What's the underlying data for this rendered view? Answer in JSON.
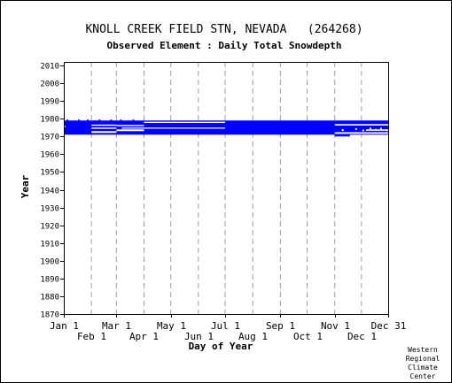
{
  "chart_data": {
    "type": "heatmap",
    "title": "KNOLL CREEK FIELD STN, NEVADA   (264268)",
    "subtitle": "Observed Element : Daily Total Snowdepth",
    "xlabel": "Day of Year",
    "ylabel": "Year",
    "x_ticks_upper": [
      {
        "label": "Jan 1",
        "day": 1
      },
      {
        "label": "Mar 1",
        "day": 60
      },
      {
        "label": "May 1",
        "day": 121
      },
      {
        "label": "Jul 1",
        "day": 182
      },
      {
        "label": "Sep 1",
        "day": 244
      },
      {
        "label": "Nov 1",
        "day": 305
      },
      {
        "label": "Dec 31",
        "day": 365
      }
    ],
    "x_ticks_lower": [
      {
        "label": "Feb 1",
        "day": 32
      },
      {
        "label": "Apr 1",
        "day": 91
      },
      {
        "label": "Jun 1",
        "day": 152
      },
      {
        "label": "Aug 1",
        "day": 213
      },
      {
        "label": "Oct 1",
        "day": 274
      },
      {
        "label": "Dec 1",
        "day": 335
      }
    ],
    "gridline_days": [
      32,
      60,
      91,
      121,
      152,
      182,
      213,
      244,
      274,
      305,
      335
    ],
    "xlim": [
      1,
      365
    ],
    "ylim": [
      1870,
      2012
    ],
    "y_ticks": [
      1870,
      1880,
      1890,
      1900,
      1910,
      1920,
      1930,
      1940,
      1950,
      1960,
      1970,
      1980,
      1990,
      2000,
      2010
    ],
    "grid": true,
    "data_color": "#0000ff",
    "coverage_segments": [
      {
        "day_start": 1,
        "day_end": 365,
        "year_start": 1971,
        "year_end": 1979
      },
      {
        "day_start": 305,
        "day_end": 322,
        "year_start": 1970,
        "year_end": 1971
      }
    ],
    "missing_segments": [
      {
        "day_start": 32,
        "day_end": 60,
        "year_start": 1972,
        "year_end": 1973
      },
      {
        "day_start": 32,
        "day_end": 60,
        "year_start": 1974.3,
        "year_end": 1975
      },
      {
        "day_start": 32,
        "day_end": 60,
        "year_start": 1976,
        "year_end": 1976.7
      },
      {
        "day_start": 60,
        "day_end": 91,
        "year_start": 1973,
        "year_end": 1974
      },
      {
        "day_start": 60,
        "day_end": 91,
        "year_start": 1975.8,
        "year_end": 1976.5
      },
      {
        "day_start": 91,
        "day_end": 182,
        "year_start": 1977.6,
        "year_end": 1978.3
      },
      {
        "day_start": 66,
        "day_end": 182,
        "year_start": 1974.4,
        "year_end": 1975
      },
      {
        "day_start": 1,
        "day_end": 3,
        "year_start": 1975.2,
        "year_end": 1976
      },
      {
        "day_start": 305,
        "day_end": 365,
        "year_start": 1971.5,
        "year_end": 1972.4
      },
      {
        "day_start": 305,
        "day_end": 365,
        "year_start": 1976.2,
        "year_end": 1977
      },
      {
        "day_start": 340,
        "day_end": 365,
        "year_start": 1973.2,
        "year_end": 1974
      }
    ],
    "upper_edge_points": [
      {
        "day": 4,
        "year": 1979
      },
      {
        "day": 12,
        "year": 1978.5
      },
      {
        "day": 17,
        "year": 1979
      },
      {
        "day": 22,
        "year": 1978.4
      },
      {
        "day": 27,
        "year": 1979
      },
      {
        "day": 35,
        "year": 1978.5
      },
      {
        "day": 40,
        "year": 1979
      },
      {
        "day": 46,
        "year": 1978.4
      },
      {
        "day": 53,
        "year": 1979
      },
      {
        "day": 58,
        "year": 1978.4
      },
      {
        "day": 64,
        "year": 1979
      },
      {
        "day": 72,
        "year": 1978.5
      },
      {
        "day": 78,
        "year": 1979
      },
      {
        "day": 86,
        "year": 1978.4
      }
    ],
    "right_edge_points": [
      {
        "day": 313,
        "year": 1973.6
      },
      {
        "day": 328,
        "year": 1974.2
      },
      {
        "day": 336,
        "year": 1973.4
      },
      {
        "day": 344,
        "year": 1974.5
      },
      {
        "day": 350,
        "year": 1973.8
      },
      {
        "day": 356,
        "year": 1974.4
      },
      {
        "day": 362,
        "year": 1973.5
      }
    ]
  },
  "footer": {
    "credit_lines": [
      "Western",
      "Regional",
      "Climate",
      "Center"
    ]
  }
}
